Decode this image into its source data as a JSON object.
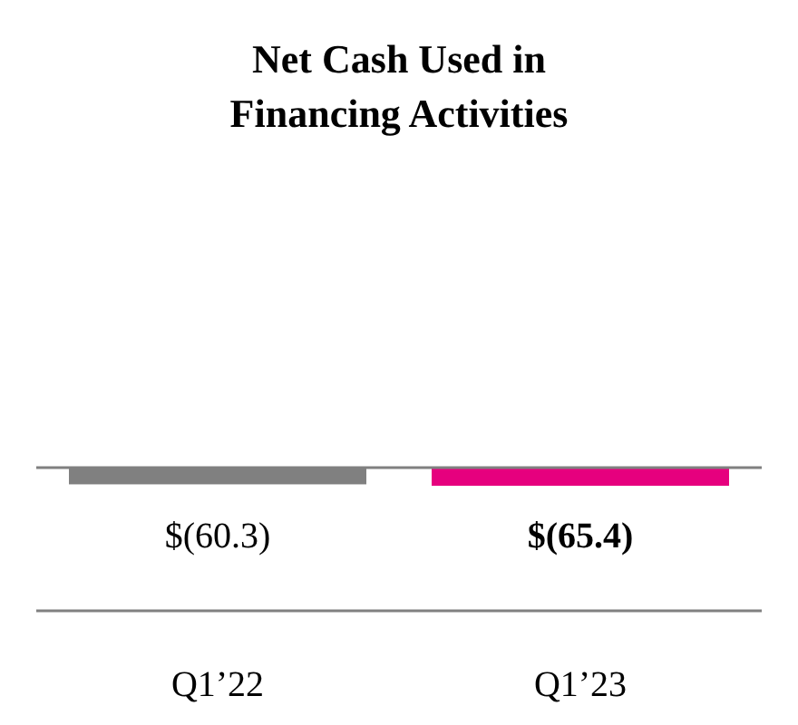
{
  "chart_data": {
    "type": "bar",
    "title": "Net Cash Used in\nFinancing Activities",
    "categories": [
      "Q1’22",
      "Q1’23"
    ],
    "values": [
      -60.3,
      -65.4
    ],
    "colors": [
      "#808080",
      "#e6007e"
    ],
    "value_labels": [
      "$(60.3)",
      "$(65.4)"
    ]
  }
}
